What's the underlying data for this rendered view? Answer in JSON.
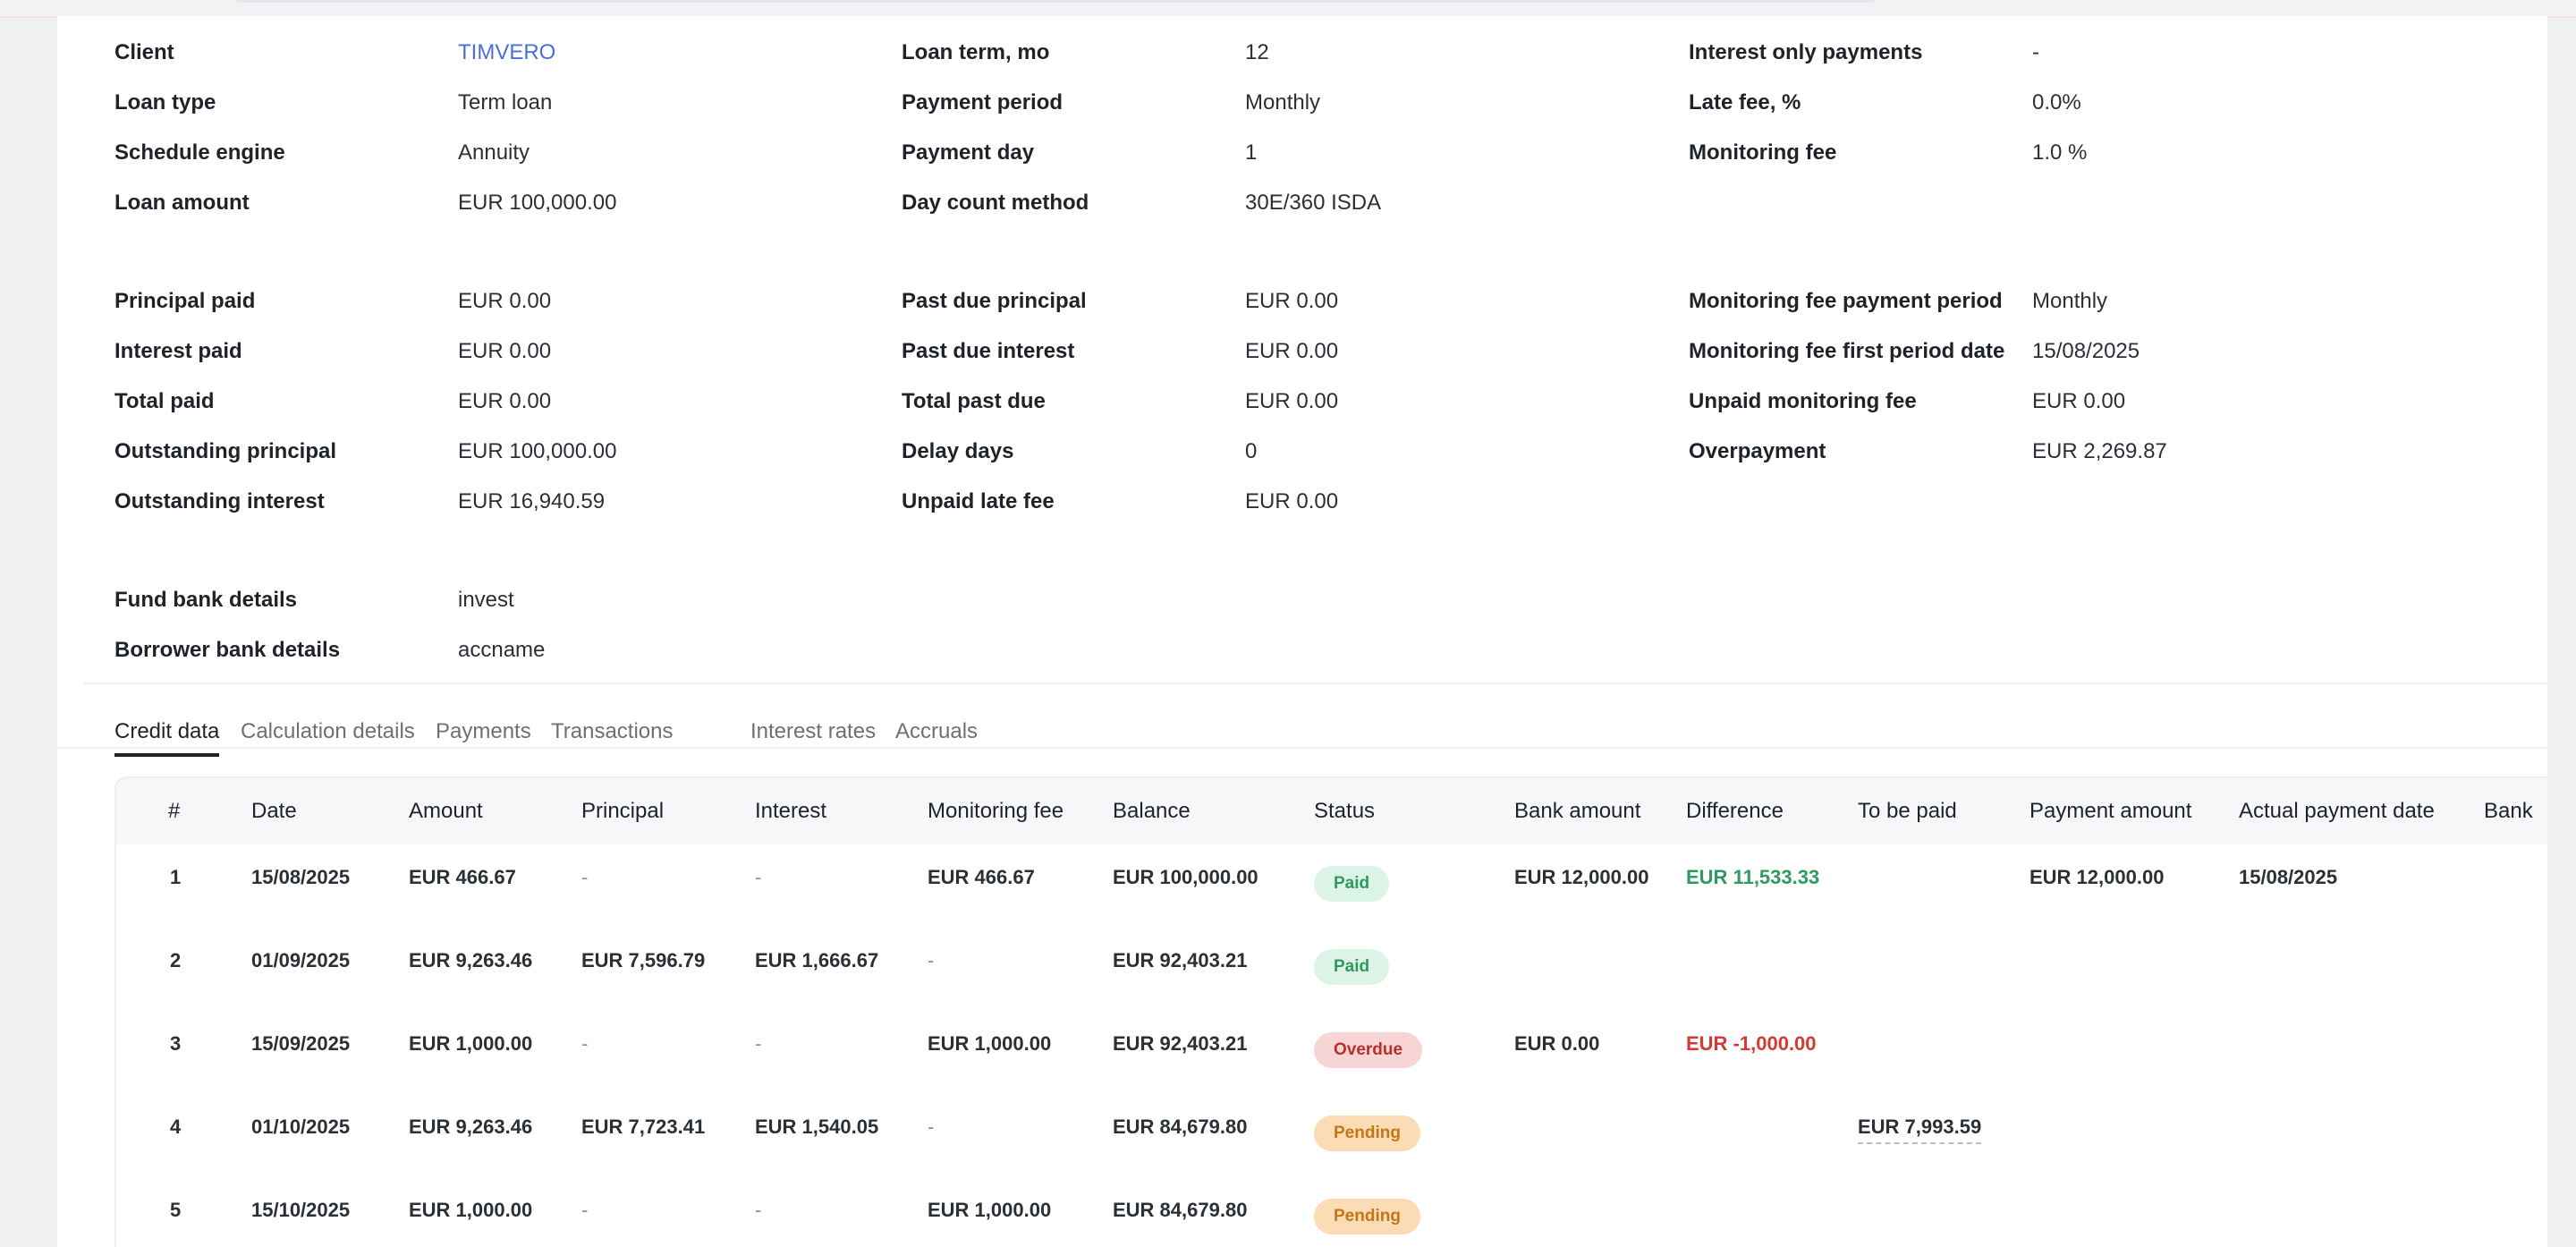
{
  "info": {
    "col1": [
      {
        "label": "Client",
        "value": "TIMVERO"
      },
      {
        "label": "Loan type",
        "value": "Term loan"
      },
      {
        "label": "Schedule engine",
        "value": "Annuity"
      },
      {
        "label": "Loan amount",
        "value": "EUR 100,000.00"
      },
      {
        "label": "Principal paid",
        "value": "EUR 0.00"
      },
      {
        "label": "Interest paid",
        "value": "EUR 0.00"
      },
      {
        "label": "Total paid",
        "value": "EUR 0.00"
      },
      {
        "label": "Outstanding principal",
        "value": "EUR 100,000.00"
      },
      {
        "label": "Outstanding interest",
        "value": "EUR 16,940.59"
      },
      {
        "label": "Fund bank details",
        "value": "invest"
      },
      {
        "label": "Borrower bank details",
        "value": "accname"
      }
    ],
    "col2": [
      {
        "label": "Loan term, mo",
        "value": "12"
      },
      {
        "label": "Payment period",
        "value": "Monthly"
      },
      {
        "label": "Payment day",
        "value": "1"
      },
      {
        "label": "Day count method",
        "value": "30E/360 ISDA"
      },
      {
        "label": "Past due principal",
        "value": "EUR 0.00"
      },
      {
        "label": "Past due interest",
        "value": "EUR 0.00"
      },
      {
        "label": "Total past due",
        "value": "EUR 0.00"
      },
      {
        "label": "Delay days",
        "value": "0"
      },
      {
        "label": "Unpaid late fee",
        "value": "EUR 0.00"
      }
    ],
    "col3": [
      {
        "label": "Interest only payments",
        "value": "-"
      },
      {
        "label": "Late fee, %",
        "value": "0.0%"
      },
      {
        "label": "Monitoring fee",
        "value": "1.0 %"
      },
      {
        "label": "Monitoring fee payment period",
        "value": "Monthly"
      },
      {
        "label": "Monitoring fee first period date",
        "value": "15/08/2025"
      },
      {
        "label": "Unpaid monitoring fee",
        "value": "EUR 0.00"
      },
      {
        "label": "Overpayment",
        "value": "EUR 2,269.87"
      }
    ]
  },
  "tabs": [
    "Credit data",
    "Calculation details",
    "Payments",
    "Transactions",
    "Interest rates",
    "Accruals"
  ],
  "table": {
    "headers": [
      "#",
      "Date",
      "Amount",
      "Principal",
      "Interest",
      "Monitoring fee",
      "Balance",
      "Status",
      "Bank amount",
      "Difference",
      "To be paid",
      "Payment amount",
      "Actual payment date",
      "Bank"
    ],
    "rows": [
      {
        "num": "1",
        "date": "15/08/2025",
        "amount": "EUR 466.67",
        "principal": "-",
        "interest": "-",
        "monitoring_fee": "EUR 466.67",
        "balance": "EUR 100,000.00",
        "status": "Paid",
        "bank_amount": "EUR 12,000.00",
        "difference": "EUR 11,533.33",
        "to_be_paid": "",
        "payment_amount": "EUR 12,000.00",
        "actual_payment_date": "15/08/2025"
      },
      {
        "num": "2",
        "date": "01/09/2025",
        "amount": "EUR 9,263.46",
        "principal": "EUR 7,596.79",
        "interest": "EUR 1,666.67",
        "monitoring_fee": "-",
        "balance": "EUR 92,403.21",
        "status": "Paid",
        "bank_amount": "",
        "difference": "",
        "to_be_paid": "",
        "payment_amount": "",
        "actual_payment_date": ""
      },
      {
        "num": "3",
        "date": "15/09/2025",
        "amount": "EUR 1,000.00",
        "principal": "-",
        "interest": "-",
        "monitoring_fee": "EUR 1,000.00",
        "balance": "EUR 92,403.21",
        "status": "Overdue",
        "bank_amount": "EUR 0.00",
        "difference": "EUR -1,000.00",
        "to_be_paid": "",
        "payment_amount": "",
        "actual_payment_date": ""
      },
      {
        "num": "4",
        "date": "01/10/2025",
        "amount": "EUR 9,263.46",
        "principal": "EUR 7,723.41",
        "interest": "EUR 1,540.05",
        "monitoring_fee": "-",
        "balance": "EUR 84,679.80",
        "status": "Pending",
        "bank_amount": "",
        "difference": "",
        "to_be_paid": "EUR 7,993.59",
        "payment_amount": "",
        "actual_payment_date": ""
      },
      {
        "num": "5",
        "date": "15/10/2025",
        "amount": "EUR 1,000.00",
        "principal": "-",
        "interest": "-",
        "monitoring_fee": "EUR 1,000.00",
        "balance": "EUR 84,679.80",
        "status": "Pending",
        "bank_amount": "",
        "difference": "",
        "to_be_paid": "",
        "payment_amount": "",
        "actual_payment_date": ""
      }
    ]
  },
  "colors": {
    "link": "#4a6fd8",
    "paid_bg": "#dcf4e7",
    "paid_text": "#2f9a5e",
    "overdue_bg": "#f8d5d5",
    "overdue_text": "#b4312c",
    "pending_bg": "#fbdcb5",
    "pending_text": "#c27719",
    "positive": "#2f9a5e",
    "negative": "#d33a34"
  }
}
